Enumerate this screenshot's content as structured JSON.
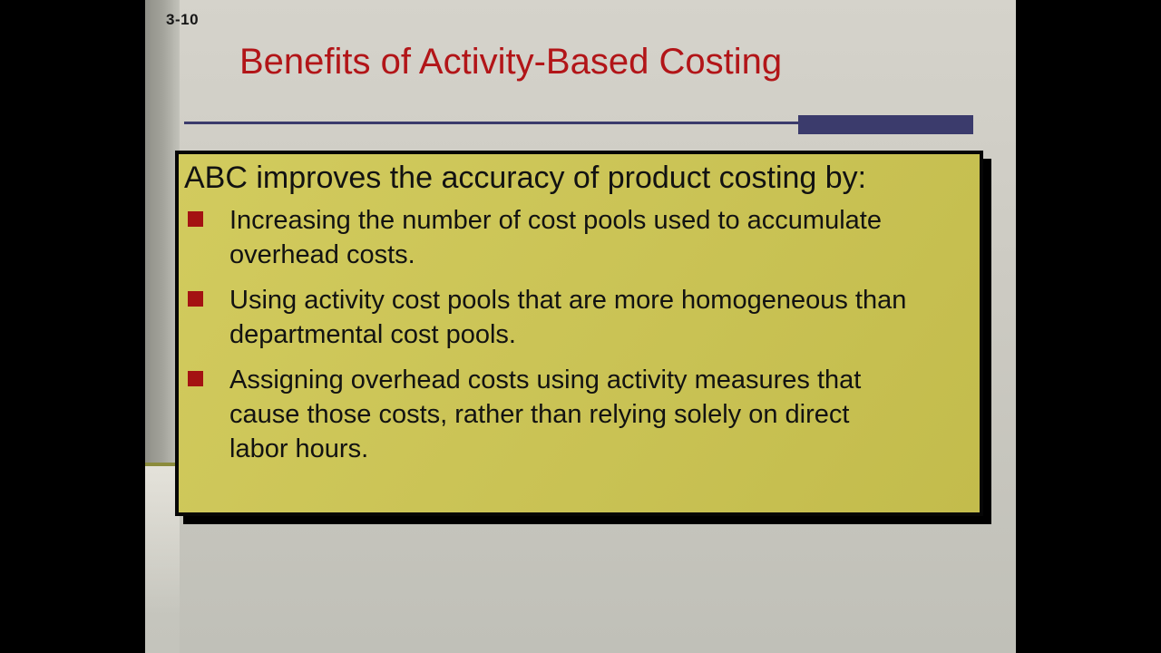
{
  "slide": {
    "page_number": "3-10",
    "title": "Benefits of Activity-Based Costing",
    "content_box": {
      "heading": "ABC improves the accuracy of product costing by:",
      "bullets": [
        {
          "lines": [
            "Increasing the number of cost pools used to accumulate",
            "overhead costs."
          ]
        },
        {
          "lines": [
            "Using activity cost pools that are more homogeneous than",
            "departmental cost pools."
          ]
        },
        {
          "lines": [
            "Assigning overhead costs using activity measures that",
            "cause those costs, rather than relying solely on direct",
            "labor hours."
          ]
        }
      ]
    },
    "colors": {
      "title_red": "#b21518",
      "bullet_red": "#a41212",
      "box_yellow": "#c9c254",
      "box_yellow_light": "#d2cb5e",
      "accent_blue": "#3b3b6c",
      "slide_bg_top": "#d5d3cb",
      "slide_bg_bottom": "#c0c0b8",
      "strip_divider_olive": "#8b8b3c",
      "text_black": "#121212"
    }
  }
}
